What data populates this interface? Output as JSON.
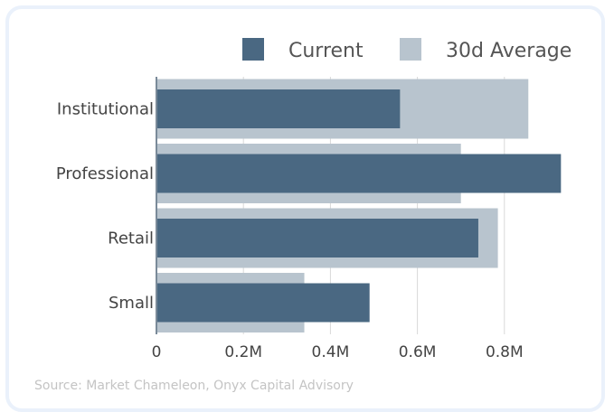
{
  "chart_data": {
    "type": "bar",
    "orientation": "horizontal",
    "categories": [
      "Institutional",
      "Professional",
      "Retail",
      "Small"
    ],
    "series": [
      {
        "name": "Current",
        "values": [
          0.56,
          0.93,
          0.74,
          0.49
        ],
        "color": "#4a6882"
      },
      {
        "name": "30d Average",
        "values": [
          0.855,
          0.7,
          0.785,
          0.34
        ],
        "color": "#b8c4ce"
      }
    ],
    "xticks": [
      {
        "value": 0,
        "label": "0"
      },
      {
        "value": 0.2,
        "label": "0.2M"
      },
      {
        "value": 0.4,
        "label": "0.4M"
      },
      {
        "value": 0.6,
        "label": "0.6M"
      },
      {
        "value": 0.8,
        "label": "0.8M"
      }
    ],
    "xlim": [
      0,
      1.0
    ],
    "grid": true,
    "legend_position": "top-right",
    "axis_color": "#7a8a99",
    "grid_color": "#d8d8d8"
  },
  "source": "Source: Market Chameleon, Onyx Capital Advisory"
}
